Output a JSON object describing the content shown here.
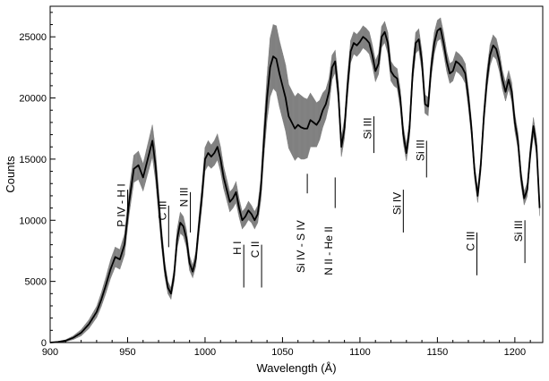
{
  "chart_data": {
    "type": "line",
    "title": "",
    "xlabel": "Wavelength (Å)",
    "ylabel": "Counts",
    "xlim": [
      900,
      1218
    ],
    "ylim": [
      0,
      27500
    ],
    "grid": false,
    "x_ticks": [
      900,
      950,
      1000,
      1050,
      1100,
      1150,
      1200
    ],
    "y_ticks": [
      0,
      5000,
      10000,
      15000,
      20000,
      25000
    ],
    "x_minor_step": 10,
    "y_minor_step": 1000,
    "band_color": "#8c8c8c",
    "line_color": "#000000",
    "series": [
      {
        "x": [
          900,
          905,
          910,
          915,
          920,
          925,
          930,
          933,
          936,
          939,
          942,
          945,
          948,
          951,
          954,
          957,
          960,
          963,
          966,
          968,
          970,
          972,
          974,
          976,
          978,
          980,
          982,
          984,
          986,
          988,
          990,
          992,
          994,
          996,
          998,
          1000,
          1002,
          1004,
          1006,
          1008,
          1010,
          1012,
          1014,
          1016,
          1018,
          1020,
          1022,
          1024,
          1026,
          1028,
          1030,
          1032,
          1034,
          1036,
          1038,
          1040,
          1042,
          1044,
          1046,
          1048,
          1050,
          1052,
          1054,
          1056,
          1058,
          1060,
          1062,
          1064,
          1066,
          1068,
          1070,
          1072,
          1074,
          1076,
          1078,
          1080,
          1082,
          1084,
          1086,
          1088,
          1090,
          1092,
          1094,
          1096,
          1098,
          1100,
          1102,
          1104,
          1106,
          1108,
          1110,
          1112,
          1114,
          1116,
          1118,
          1120,
          1122,
          1124,
          1126,
          1128,
          1130,
          1132,
          1134,
          1136,
          1138,
          1140,
          1142,
          1144,
          1146,
          1148,
          1150,
          1152,
          1154,
          1156,
          1158,
          1160,
          1162,
          1164,
          1166,
          1168,
          1170,
          1172,
          1174,
          1176,
          1178,
          1180,
          1182,
          1184,
          1186,
          1188,
          1190,
          1192,
          1194,
          1196,
          1198,
          1200,
          1202,
          1204,
          1206,
          1208,
          1210,
          1212,
          1214,
          1216
        ],
        "values": [
          0,
          50,
          150,
          400,
          800,
          1500,
          2500,
          3500,
          4700,
          6000,
          7000,
          6800,
          8000,
          11500,
          14200,
          14500,
          13500,
          15000,
          16500,
          14500,
          11500,
          8500,
          6000,
          4500,
          4000,
          5500,
          8500,
          9800,
          9500,
          8500,
          6500,
          5800,
          6800,
          9500,
          12000,
          15000,
          15500,
          15200,
          15500,
          16000,
          15000,
          13500,
          12500,
          11500,
          11800,
          12300,
          11000,
          10000,
          10300,
          10800,
          10500,
          10000,
          10500,
          12500,
          16500,
          20000,
          22500,
          23400,
          23200,
          22000,
          21000,
          20000,
          18500,
          18000,
          17500,
          17800,
          17600,
          17500,
          17500,
          18200,
          18000,
          17800,
          18200,
          19000,
          19500,
          20500,
          22500,
          23000,
          20500,
          16000,
          17500,
          21000,
          23800,
          24500,
          24300,
          24600,
          25000,
          24800,
          24500,
          23500,
          22200,
          22800,
          25000,
          25400,
          24500,
          22200,
          21800,
          21600,
          20000,
          17000,
          15500,
          17500,
          22000,
          24500,
          24800,
          23000,
          19500,
          19300,
          22500,
          24500,
          25500,
          25700,
          24500,
          23000,
          22000,
          22200,
          23000,
          22800,
          22500,
          22000,
          20000,
          17500,
          14000,
          12000,
          14500,
          18500,
          21500,
          23500,
          24300,
          24000,
          23000,
          21500,
          20500,
          21500,
          20500,
          18000,
          16500,
          13500,
          11800,
          12500,
          15500,
          17700,
          16000,
          11000
        ],
        "uncertainty": [
          0,
          30,
          80,
          150,
          250,
          350,
          450,
          550,
          650,
          750,
          800,
          800,
          850,
          1000,
          1100,
          1150,
          1100,
          1200,
          1300,
          1200,
          1000,
          800,
          600,
          500,
          450,
          550,
          750,
          850,
          800,
          700,
          600,
          500,
          600,
          750,
          850,
          950,
          1000,
          950,
          1000,
          1050,
          1000,
          900,
          850,
          800,
          800,
          850,
          750,
          700,
          700,
          750,
          700,
          700,
          700,
          900,
          1300,
          1800,
          2400,
          2600,
          2700,
          2700,
          2700,
          2700,
          2600,
          2600,
          2600,
          2600,
          2600,
          2500,
          2400,
          2200,
          2000,
          1800,
          1600,
          1400,
          1200,
          1100,
          1000,
          900,
          850,
          800,
          800,
          900,
          900,
          900,
          900,
          900,
          900,
          900,
          900,
          850,
          850,
          850,
          850,
          850,
          850,
          800,
          800,
          800,
          750,
          700,
          650,
          700,
          800,
          850,
          850,
          800,
          750,
          750,
          800,
          850,
          850,
          850,
          850,
          800,
          800,
          800,
          800,
          800,
          800,
          800,
          750,
          700,
          600,
          550,
          600,
          700,
          800,
          850,
          850,
          850,
          800,
          750,
          750,
          750,
          750,
          700,
          650,
          600,
          550,
          550,
          600,
          700,
          700,
          650,
          550
        ]
      }
    ],
    "annotations": [
      {
        "label": "P IV - H I",
        "x": 950,
        "line_ymax": 12500,
        "line_ymin": 10000,
        "label_y": 13000
      },
      {
        "label": "C III",
        "x": 976.5,
        "line_ymax": 11200,
        "line_ymin": 7800,
        "label_y": 11600
      },
      {
        "label": "N III",
        "x": 990.5,
        "line_ymax": 12300,
        "line_ymin": 9000,
        "label_y": 12700
      },
      {
        "label": "H I",
        "x": 1025,
        "line_ymax": 8000,
        "line_ymin": 4500,
        "label_y": 8300
      },
      {
        "label": "C II",
        "x": 1036.5,
        "line_ymax": 8000,
        "line_ymin": 4500,
        "label_y": 8300
      },
      {
        "label": "Si IV - S IV",
        "x": 1066,
        "line_ymax": 13800,
        "line_ymin": 12200,
        "label_y": 10000
      },
      {
        "label": "N II - He II",
        "x": 1084,
        "line_ymax": 13500,
        "line_ymin": 11000,
        "label_y": 9500
      },
      {
        "label": "Si III",
        "x": 1109,
        "line_ymax": 18500,
        "line_ymin": 15500,
        "label_y": 18400
      },
      {
        "label": "Si IV",
        "x": 1128,
        "line_ymax": 12500,
        "line_ymin": 9000,
        "label_y": 12300
      },
      {
        "label": "Si III",
        "x": 1143,
        "line_ymax": 16500,
        "line_ymin": 13500,
        "label_y": 16600
      },
      {
        "label": "C III",
        "x": 1175.5,
        "line_ymax": 9000,
        "line_ymin": 5500,
        "label_y": 9100
      },
      {
        "label": "Si III",
        "x": 1206.5,
        "line_ymax": 10000,
        "line_ymin": 6500,
        "label_y": 10000
      }
    ]
  }
}
